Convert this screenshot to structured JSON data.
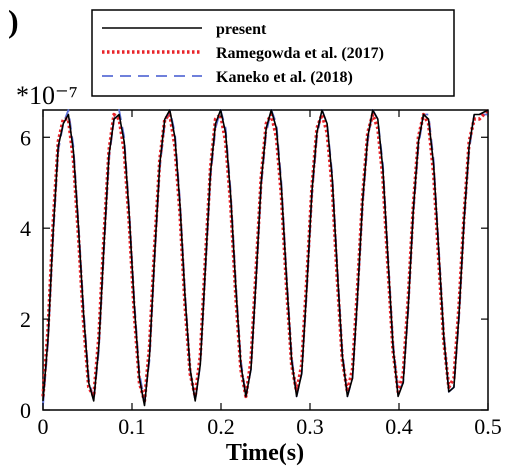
{
  "chart_data": {
    "type": "line",
    "panel_label": ")",
    "xlabel": "Time(s)",
    "ylabel": "",
    "y_scale_label": "*10⁻⁷",
    "xlim": [
      0,
      0.5
    ],
    "ylim": [
      0,
      6.6
    ],
    "x_ticks": [
      "0",
      "0.1",
      "0.2",
      "0.3",
      "0.4",
      "0.5"
    ],
    "y_ticks": [
      "0",
      "2",
      "4",
      "6"
    ],
    "legend_position": "top",
    "series": [
      {
        "name": "present",
        "color": "#000000",
        "style": "solid",
        "x": [
          0.0,
          0.0057,
          0.0114,
          0.0171,
          0.0228,
          0.0285,
          0.0342,
          0.0399,
          0.0456,
          0.0513,
          0.057,
          0.0627,
          0.0684,
          0.0741,
          0.0798,
          0.0855,
          0.0912,
          0.0969,
          0.1026,
          0.1083,
          0.114,
          0.1197,
          0.1254,
          0.1311,
          0.1368,
          0.1425,
          0.1482,
          0.1539,
          0.1596,
          0.1653,
          0.171,
          0.1767,
          0.1824,
          0.1881,
          0.1938,
          0.1995,
          0.2052,
          0.2109,
          0.2166,
          0.2223,
          0.228,
          0.2337,
          0.2394,
          0.2451,
          0.2508,
          0.2565,
          0.2622,
          0.2679,
          0.2736,
          0.2793,
          0.285,
          0.2907,
          0.2964,
          0.3021,
          0.3078,
          0.3135,
          0.3192,
          0.3249,
          0.3306,
          0.3363,
          0.342,
          0.3477,
          0.3534,
          0.3591,
          0.3648,
          0.3705,
          0.3762,
          0.3819,
          0.3876,
          0.3933,
          0.399,
          0.4047,
          0.4104,
          0.4161,
          0.4218,
          0.4275,
          0.4332,
          0.4389,
          0.4446,
          0.4503,
          0.456,
          0.4617,
          0.4674,
          0.4731,
          0.4788,
          0.4845,
          0.4902,
          0.5
        ],
        "y": [
          0.2,
          1.6,
          3.9,
          5.8,
          6.3,
          6.5,
          5.7,
          4.0,
          2.1,
          0.6,
          0.2,
          1.4,
          3.6,
          5.6,
          6.4,
          6.5,
          5.9,
          4.3,
          2.3,
          0.7,
          0.1,
          1.2,
          3.4,
          5.4,
          6.4,
          6.6,
          6.0,
          4.5,
          2.5,
          0.9,
          0.2,
          1.0,
          3.1,
          5.2,
          6.3,
          6.6,
          6.1,
          4.7,
          2.7,
          1.0,
          0.3,
          0.9,
          2.9,
          5.0,
          6.2,
          6.6,
          6.2,
          4.9,
          2.9,
          1.1,
          0.3,
          0.8,
          2.7,
          4.8,
          6.1,
          6.6,
          6.3,
          5.1,
          3.1,
          1.2,
          0.3,
          0.7,
          2.5,
          4.6,
          6.0,
          6.6,
          6.4,
          5.3,
          3.3,
          1.4,
          0.3,
          0.6,
          2.3,
          4.4,
          5.9,
          6.5,
          6.4,
          5.4,
          3.5,
          1.6,
          0.4,
          0.5,
          2.1,
          4.2,
          5.8,
          6.5,
          6.5,
          6.6
        ]
      },
      {
        "name": "Ramegowda et al. (2017)",
        "color": "#e8242a",
        "style": "dotted",
        "x": [
          0.0,
          0.0057,
          0.0114,
          0.0171,
          0.0228,
          0.0285,
          0.0342,
          0.0399,
          0.0456,
          0.0513,
          0.057,
          0.0627,
          0.0684,
          0.0741,
          0.0798,
          0.0855,
          0.0912,
          0.0969,
          0.1026,
          0.1083,
          0.114,
          0.1197,
          0.1254,
          0.1311,
          0.1368,
          0.1425,
          0.1482,
          0.1539,
          0.1596,
          0.1653,
          0.171,
          0.1767,
          0.1824,
          0.1881,
          0.1938,
          0.1995,
          0.2052,
          0.2109,
          0.2166,
          0.2223,
          0.228,
          0.2337,
          0.2394,
          0.2451,
          0.2508,
          0.2565,
          0.2622,
          0.2679,
          0.2736,
          0.2793,
          0.285,
          0.2907,
          0.2964,
          0.3021,
          0.3078,
          0.3135,
          0.3192,
          0.3249,
          0.3306,
          0.3363,
          0.342,
          0.3477,
          0.3534,
          0.3591,
          0.3648,
          0.3705,
          0.3762,
          0.3819,
          0.3876,
          0.3933,
          0.399,
          0.4047,
          0.4104,
          0.4161,
          0.4218,
          0.4275,
          0.4332,
          0.4389,
          0.4446,
          0.4503,
          0.456,
          0.4617,
          0.4674,
          0.4731,
          0.4788,
          0.4845,
          0.4902,
          0.5
        ],
        "y": [
          0.3,
          1.8,
          4.1,
          5.9,
          6.4,
          6.4,
          5.5,
          3.8,
          1.9,
          0.5,
          0.3,
          1.6,
          3.8,
          5.7,
          6.5,
          6.4,
          5.7,
          4.1,
          2.1,
          0.6,
          0.2,
          1.4,
          3.6,
          5.5,
          6.4,
          6.5,
          5.8,
          4.3,
          2.3,
          0.8,
          0.3,
          1.2,
          3.3,
          5.3,
          6.4,
          6.5,
          5.9,
          4.5,
          2.5,
          0.9,
          0.3,
          1.1,
          3.1,
          5.1,
          6.3,
          6.5,
          6.0,
          4.7,
          2.7,
          1.0,
          0.4,
          1.0,
          2.9,
          4.9,
          6.2,
          6.5,
          6.1,
          4.9,
          2.9,
          1.1,
          0.4,
          0.9,
          2.7,
          4.7,
          6.1,
          6.5,
          6.2,
          5.1,
          3.1,
          1.3,
          0.4,
          0.8,
          2.5,
          4.5,
          6.0,
          6.5,
          6.3,
          5.2,
          3.3,
          1.5,
          0.5,
          0.7,
          2.3,
          4.3,
          5.9,
          6.4,
          6.4,
          6.6
        ]
      },
      {
        "name": "Kaneko et al. (2018)",
        "color": "#5b6fd6",
        "style": "dashed",
        "x": [
          0.0,
          0.0057,
          0.0114,
          0.0171,
          0.0228,
          0.0285,
          0.0342,
          0.0399,
          0.0456,
          0.0513,
          0.057,
          0.0627,
          0.0684,
          0.0741,
          0.0798,
          0.0855,
          0.0912,
          0.0969,
          0.1026,
          0.1083,
          0.114,
          0.1197,
          0.1254,
          0.1311,
          0.1368,
          0.1425,
          0.1482,
          0.1539,
          0.1596,
          0.1653,
          0.171,
          0.1767,
          0.1824,
          0.1881,
          0.1938,
          0.1995,
          0.2052,
          0.2109,
          0.2166,
          0.2223,
          0.228,
          0.2337,
          0.2394,
          0.2451,
          0.2508,
          0.2565,
          0.2622,
          0.2679,
          0.2736,
          0.2793,
          0.285,
          0.2907,
          0.2964,
          0.3021,
          0.3078,
          0.3135,
          0.3192,
          0.3249,
          0.3306,
          0.3363,
          0.342,
          0.3477,
          0.3534,
          0.3591,
          0.3648,
          0.3705,
          0.3762,
          0.3819,
          0.3876,
          0.3933,
          0.399,
          0.4047,
          0.4104,
          0.4161,
          0.4218,
          0.4275,
          0.4332,
          0.4389,
          0.4446,
          0.4503,
          0.456,
          0.4617,
          0.4674,
          0.4731,
          0.4788,
          0.4845,
          0.4902,
          0.5
        ],
        "y": [
          0.1,
          1.5,
          3.8,
          5.7,
          6.3,
          6.6,
          5.8,
          4.1,
          2.2,
          0.7,
          0.2,
          1.3,
          3.5,
          5.5,
          6.4,
          6.6,
          6.0,
          4.4,
          2.4,
          0.8,
          0.2,
          1.1,
          3.3,
          5.3,
          6.3,
          6.6,
          6.1,
          4.6,
          2.6,
          0.9,
          0.2,
          1.0,
          3.0,
          5.1,
          6.2,
          6.6,
          6.2,
          4.8,
          2.8,
          1.1,
          0.3,
          0.9,
          2.8,
          4.9,
          6.1,
          6.6,
          6.3,
          5.0,
          3.0,
          1.2,
          0.3,
          0.8,
          2.6,
          4.7,
          6.0,
          6.6,
          6.3,
          5.2,
          3.2,
          1.3,
          0.3,
          0.7,
          2.4,
          4.5,
          5.9,
          6.6,
          6.4,
          5.4,
          3.4,
          1.5,
          0.4,
          0.6,
          2.2,
          4.3,
          5.8,
          6.5,
          6.5,
          5.5,
          3.6,
          1.7,
          0.4,
          0.5,
          2.0,
          4.1,
          5.7,
          6.5,
          6.5,
          6.5
        ]
      }
    ]
  }
}
